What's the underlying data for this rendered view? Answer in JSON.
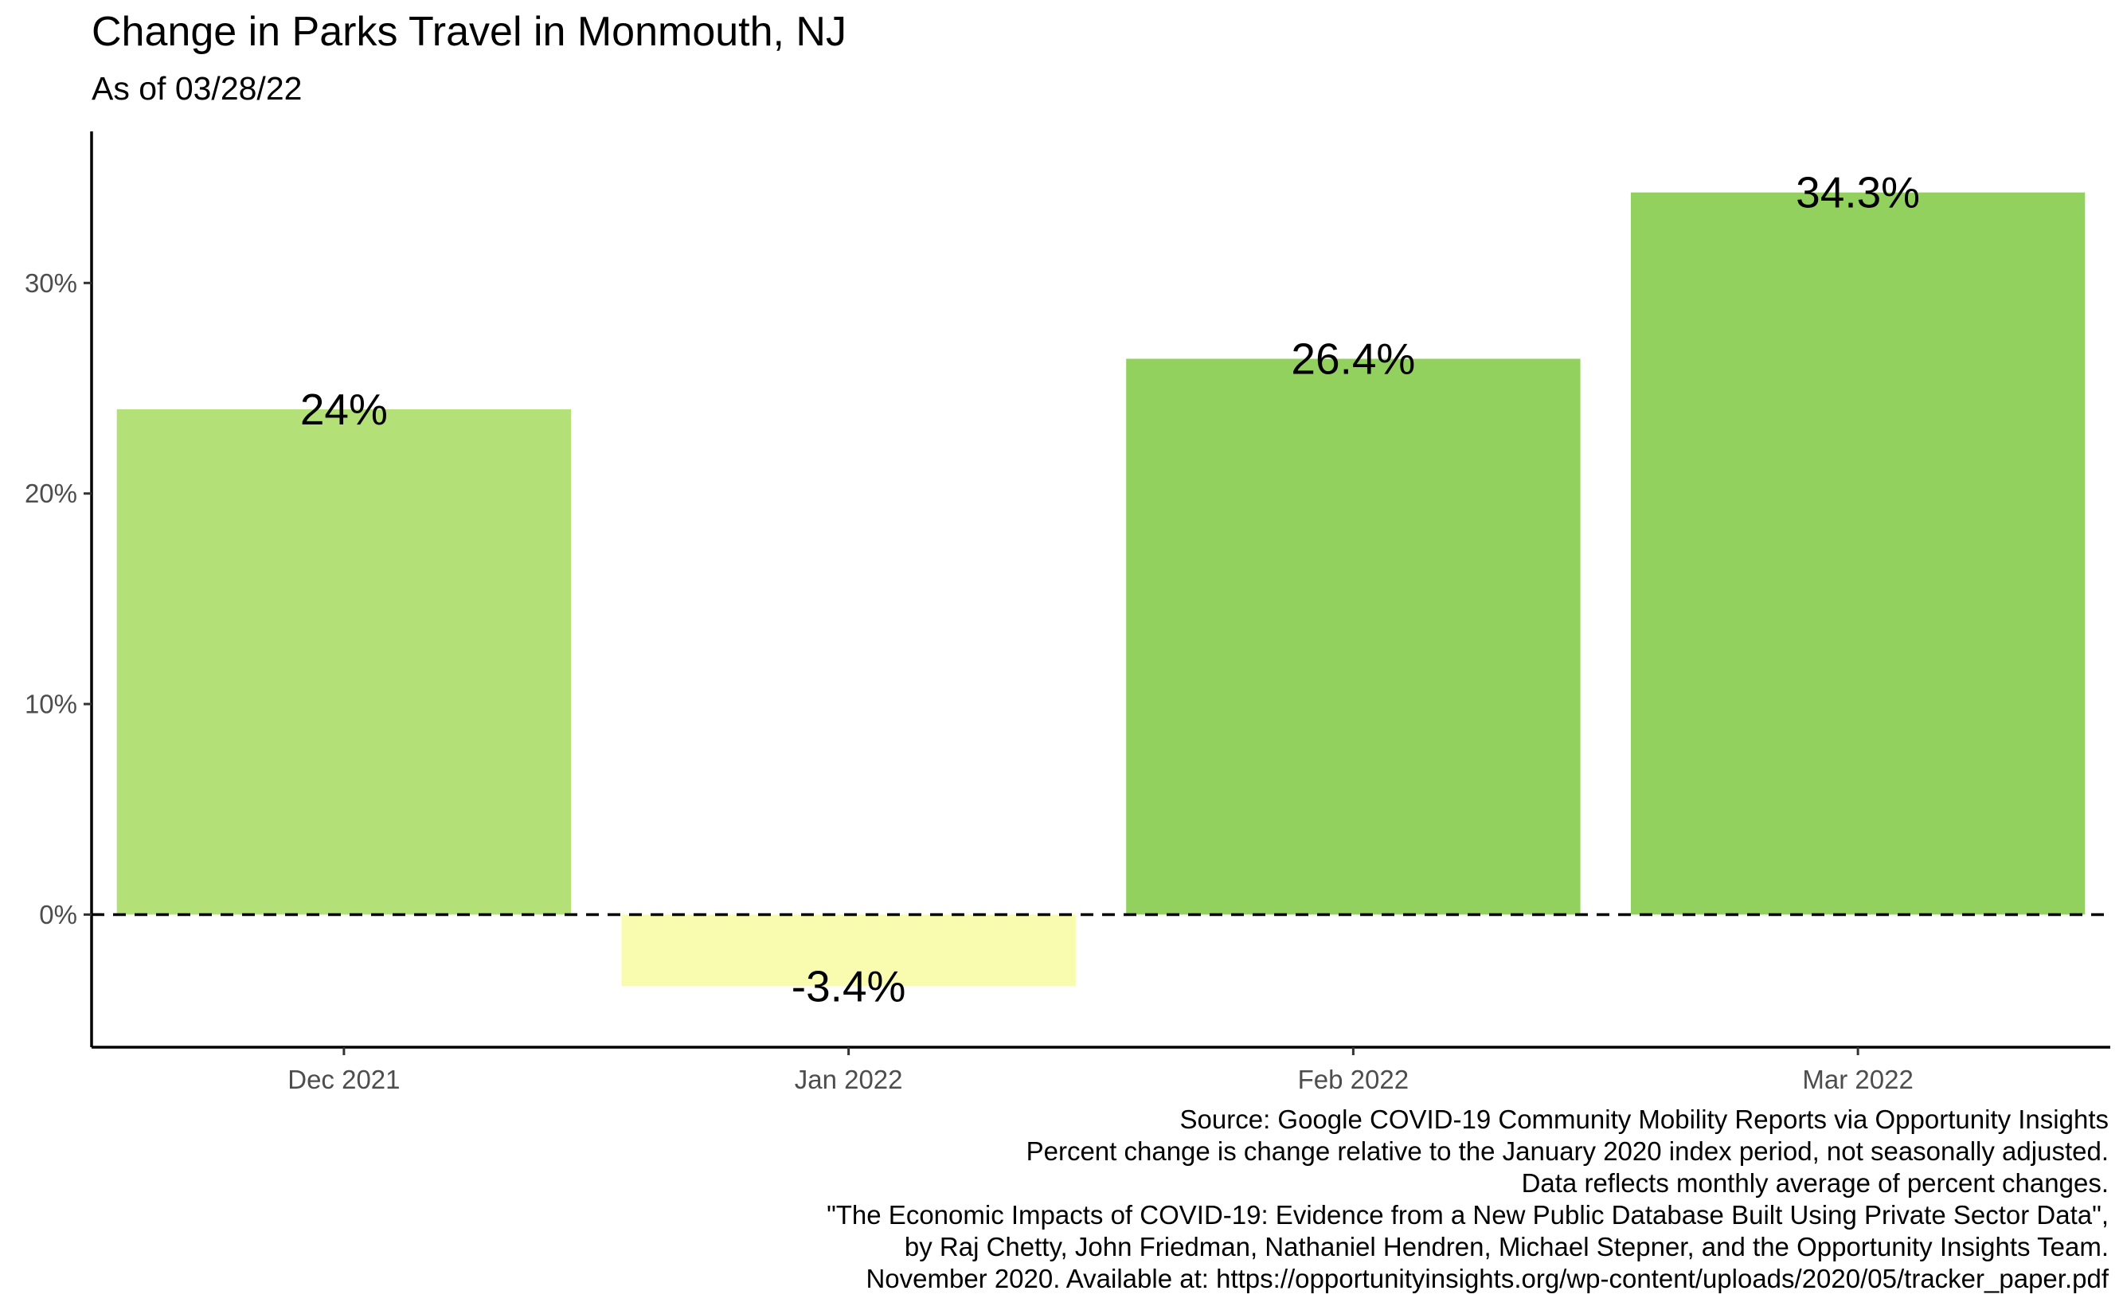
{
  "title": "Change in Parks Travel in Monmouth, NJ",
  "subtitle": "As of 03/28/22",
  "caption": [
    "Source: Google COVID-19 Community Mobility Reports via Opportunity Insights",
    "Percent change is change relative to the January 2020 index period, not seasonally adjusted.",
    "Data reflects monthly average of percent changes.",
    "\"The Economic Impacts of COVID-19: Evidence from a New Public Database Built Using Private Sector Data\",",
    "by Raj Chetty, John Friedman, Nathaniel Hendren, Michael Stepner, and the Opportunity Insights Team.",
    "November 2020. Available at: https://opportunityinsights.org/wp-content/uploads/2020/05/tracker_paper.pdf"
  ],
  "chart_data": {
    "type": "bar",
    "title": "Change in Parks Travel in Monmouth, NJ",
    "subtitle": "As of 03/28/22",
    "xlabel": "",
    "ylabel": "",
    "categories": [
      "Dec 2021",
      "Jan 2022",
      "Feb 2022",
      "Mar 2022"
    ],
    "values": [
      24.0,
      -3.4,
      26.4,
      34.3
    ],
    "data_labels": [
      "24%",
      "-3.4%",
      "26.4%",
      "34.3%"
    ],
    "bar_colors": [
      "#b3e077",
      "#f9fcae",
      "#93d15e",
      "#93d15e"
    ],
    "ylim": [
      -6.3,
      37.2
    ],
    "yticks": [
      0,
      10,
      20,
      30
    ],
    "ytick_labels": [
      "0%",
      "10%",
      "20%",
      "30%"
    ],
    "reference_line": {
      "y": 0,
      "style": "dashed"
    },
    "grid": false,
    "legend": "none"
  }
}
